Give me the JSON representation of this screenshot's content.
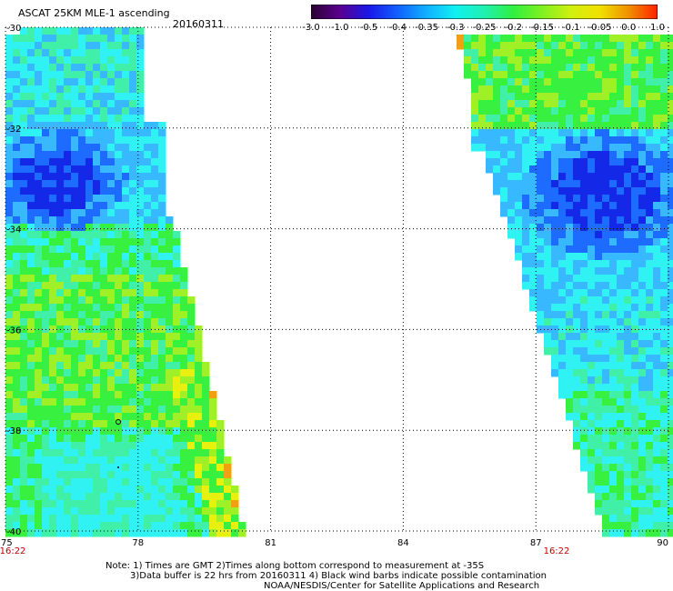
{
  "header": {
    "title": "ASCAT 25KM MLE-1 ascending",
    "date": "20160311"
  },
  "colorbar": {
    "labels": [
      "-3.0",
      "-1.0",
      "-0.5",
      "-0.4",
      "-0.35",
      "-0.3",
      "-0.25",
      "-0.2",
      "-0.15",
      "-0.1",
      "-0.05",
      "0.0",
      "1.0"
    ],
    "colors": [
      "#2a0030",
      "#5a0090",
      "#1a18e8",
      "#1060ff",
      "#10b0ff",
      "#10f0f0",
      "#20f0b0",
      "#30f040",
      "#80f020",
      "#d0f010",
      "#f0e000",
      "#f09000",
      "#ff2000"
    ]
  },
  "map": {
    "lat_labels": [
      "-30",
      "-32",
      "-34",
      "-36",
      "-38",
      "-40"
    ],
    "lon_labels": [
      "75",
      "78",
      "81",
      "84",
      "87",
      "90"
    ],
    "lat_range": [
      -30,
      -40
    ],
    "lon_range": [
      75,
      90
    ],
    "swath_times": [
      "16:22",
      "16:22"
    ],
    "colors": {
      "deep_blue": "#1428e8",
      "blue": "#1e6cff",
      "light_blue": "#38b8ff",
      "cyan": "#30f2f2",
      "aqua_green": "#40f0a8",
      "green": "#38f040",
      "lime": "#a0f028",
      "yellow": "#e8f010",
      "orange": "#f0a010",
      "time_label": "#c00000"
    }
  },
  "notes": {
    "line1": "Note: 1) Times are GMT 2)Times along bottom correspond to measurement at -35S",
    "line2": "3)Data buffer is 22 hrs from 20160311 4) Black wind barbs indicate possible contamination",
    "line3": "NOAA/NESDIS/Center for Satellite Applications and Research"
  }
}
